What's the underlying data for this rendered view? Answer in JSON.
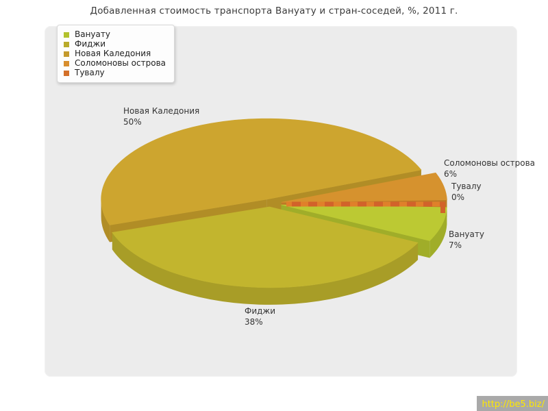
{
  "chart_data": {
    "type": "pie",
    "title": "Добавленная стоимость транспорта Вануату и стран-соседей, %, 2011 г.",
    "unit": "%",
    "year": "2011 г.",
    "style": "3d-exploded-pie",
    "legend_position": "top-left",
    "slices": [
      {
        "name": "Вануату",
        "value": 7,
        "pct_label": "7%",
        "color": "#bcc933",
        "side": "#a0ad29",
        "legend_color": "#b3c22e"
      },
      {
        "name": "Фиджи",
        "value": 38,
        "pct_label": "38%",
        "color": "#c2b52e",
        "side": "#a89d27",
        "legend_color": "#b9ab2b"
      },
      {
        "name": "Новая Каледония",
        "value": 50,
        "pct_label": "50%",
        "color": "#cda52f",
        "side": "#b18d26",
        "legend_color": "#c49a2d"
      },
      {
        "name": "Соломоновы острова",
        "value": 6,
        "pct_label": "6%",
        "color": "#d6922e",
        "side": "#bd7a25",
        "legend_color": "#d88e2e"
      },
      {
        "name": "Тувалу",
        "value": 0,
        "pct_label": "0%",
        "color": "#e0802a",
        "side": "#d2622a",
        "legend_color": "#d3702a"
      }
    ]
  },
  "footer": {
    "url": "http://be5.biz/"
  }
}
